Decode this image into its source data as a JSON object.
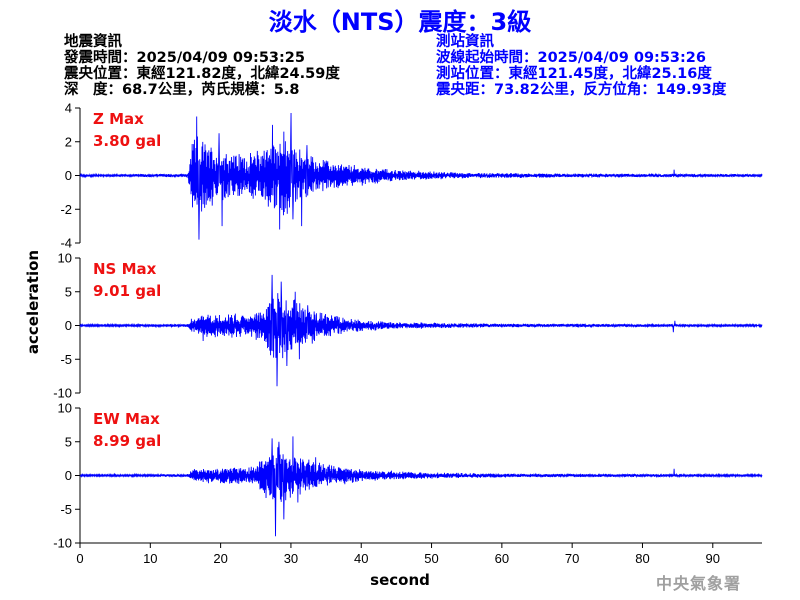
{
  "header": {
    "title": "淡水（NTS）震度：3級"
  },
  "quake_info": {
    "heading": "地震資訊",
    "origin_time": "發震時間：2025/04/09 09:53:25",
    "epicenter": "震央位置：東經121.82度，北緯24.59度",
    "depth_magnitude": "深　度：68.7公里，芮氏規模：5.8"
  },
  "station_info": {
    "heading": "測站資訊",
    "wave_start": "波線起始時間：2025/04/09 09:53:26",
    "station_location": "測站位置：東經121.45度，北緯25.16度",
    "distance_azimuth": "震央距：73.82公里，反方位角：149.93度"
  },
  "credit": "中央氣象署",
  "colors": {
    "trace": "#0000ff",
    "max_label": "#ee1111",
    "title": "#0000ff",
    "axis": "#000000"
  },
  "chart_data": {
    "type": "line",
    "xlabel": "second",
    "ylabel": "acceleration",
    "xlim": [
      0,
      97
    ],
    "xticks": [
      0,
      10,
      20,
      30,
      40,
      50,
      60,
      70,
      80,
      90
    ],
    "grid": false,
    "panels": [
      {
        "name": "Z",
        "max_label": "Z Max",
        "max_value": "3.80 gal",
        "ylim": [
          -4,
          4
        ],
        "yticks": [
          -4,
          -2,
          0,
          2,
          4
        ],
        "envelope": [
          {
            "t": 0,
            "a": 0.06
          },
          {
            "t": 15.3,
            "a": 0.1
          },
          {
            "t": 15.8,
            "a": 1.4
          },
          {
            "t": 16.5,
            "a": 2.4
          },
          {
            "t": 17,
            "a": 2.0
          },
          {
            "t": 20,
            "a": 1.4
          },
          {
            "t": 24,
            "a": 1.1
          },
          {
            "t": 26.5,
            "a": 1.8
          },
          {
            "t": 29,
            "a": 2.3
          },
          {
            "t": 32,
            "a": 1.2
          },
          {
            "t": 36,
            "a": 0.7
          },
          {
            "t": 45,
            "a": 0.3
          },
          {
            "t": 55,
            "a": 0.15
          },
          {
            "t": 70,
            "a": 0.1
          },
          {
            "t": 97,
            "a": 0.08
          }
        ],
        "peaks": [
          {
            "t": 16.6,
            "v": 3.5
          },
          {
            "t": 16.9,
            "v": -3.8
          },
          {
            "t": 19.8,
            "v": 2.5
          },
          {
            "t": 20.2,
            "v": -3.0
          },
          {
            "t": 27.4,
            "v": 3.0
          },
          {
            "t": 28.4,
            "v": -3.2
          },
          {
            "t": 30.0,
            "v": 3.7
          },
          {
            "t": 30.3,
            "v": -2.6
          },
          {
            "t": 31.5,
            "v": -3.0
          },
          {
            "t": 32.3,
            "v": 1.8
          },
          {
            "t": 84.5,
            "v": 0.35
          }
        ]
      },
      {
        "name": "NS",
        "max_label": "NS Max",
        "max_value": "9.01 gal",
        "ylim": [
          -10,
          10
        ],
        "yticks": [
          -10,
          -5,
          0,
          5,
          10
        ],
        "envelope": [
          {
            "t": 0,
            "a": 0.12
          },
          {
            "t": 15.3,
            "a": 0.2
          },
          {
            "t": 16,
            "a": 1.2
          },
          {
            "t": 18,
            "a": 1.5
          },
          {
            "t": 22,
            "a": 1.6
          },
          {
            "t": 26,
            "a": 2.0
          },
          {
            "t": 27.5,
            "a": 4.8
          },
          {
            "t": 29,
            "a": 4.2
          },
          {
            "t": 31,
            "a": 3.2
          },
          {
            "t": 34,
            "a": 2.0
          },
          {
            "t": 38,
            "a": 1.0
          },
          {
            "t": 45,
            "a": 0.45
          },
          {
            "t": 60,
            "a": 0.25
          },
          {
            "t": 97,
            "a": 0.15
          }
        ],
        "peaks": [
          {
            "t": 27.3,
            "v": 7.5
          },
          {
            "t": 28.0,
            "v": -9.0
          },
          {
            "t": 28.6,
            "v": 6.5
          },
          {
            "t": 29.4,
            "v": -6.0
          },
          {
            "t": 30.6,
            "v": 5.0
          },
          {
            "t": 31.2,
            "v": -5.0
          },
          {
            "t": 32.4,
            "v": 3.0
          },
          {
            "t": 17.5,
            "v": -2.3
          },
          {
            "t": 84.4,
            "v": -1.0
          },
          {
            "t": 84.6,
            "v": 0.7
          }
        ]
      },
      {
        "name": "EW",
        "max_label": "EW Max",
        "max_value": "8.99 gal",
        "ylim": [
          -10,
          10
        ],
        "yticks": [
          -10,
          -5,
          0,
          5,
          10
        ],
        "envelope": [
          {
            "t": 0,
            "a": 0.12
          },
          {
            "t": 15.3,
            "a": 0.2
          },
          {
            "t": 16,
            "a": 0.9
          },
          {
            "t": 20,
            "a": 1.1
          },
          {
            "t": 25,
            "a": 1.3
          },
          {
            "t": 27,
            "a": 3.5
          },
          {
            "t": 28.5,
            "a": 4.3
          },
          {
            "t": 30,
            "a": 2.9
          },
          {
            "t": 32,
            "a": 2.3
          },
          {
            "t": 35,
            "a": 1.5
          },
          {
            "t": 40,
            "a": 0.8
          },
          {
            "t": 50,
            "a": 0.4
          },
          {
            "t": 65,
            "a": 0.22
          },
          {
            "t": 97,
            "a": 0.15
          }
        ],
        "peaks": [
          {
            "t": 27.3,
            "v": 5.5
          },
          {
            "t": 27.8,
            "v": -9.0
          },
          {
            "t": 28.3,
            "v": 5.0
          },
          {
            "t": 29.0,
            "v": -6.5
          },
          {
            "t": 30.3,
            "v": 5.8
          },
          {
            "t": 31.0,
            "v": -4.0
          },
          {
            "t": 33.5,
            "v": 2.7
          },
          {
            "t": 84.5,
            "v": 1.0
          }
        ]
      }
    ]
  }
}
